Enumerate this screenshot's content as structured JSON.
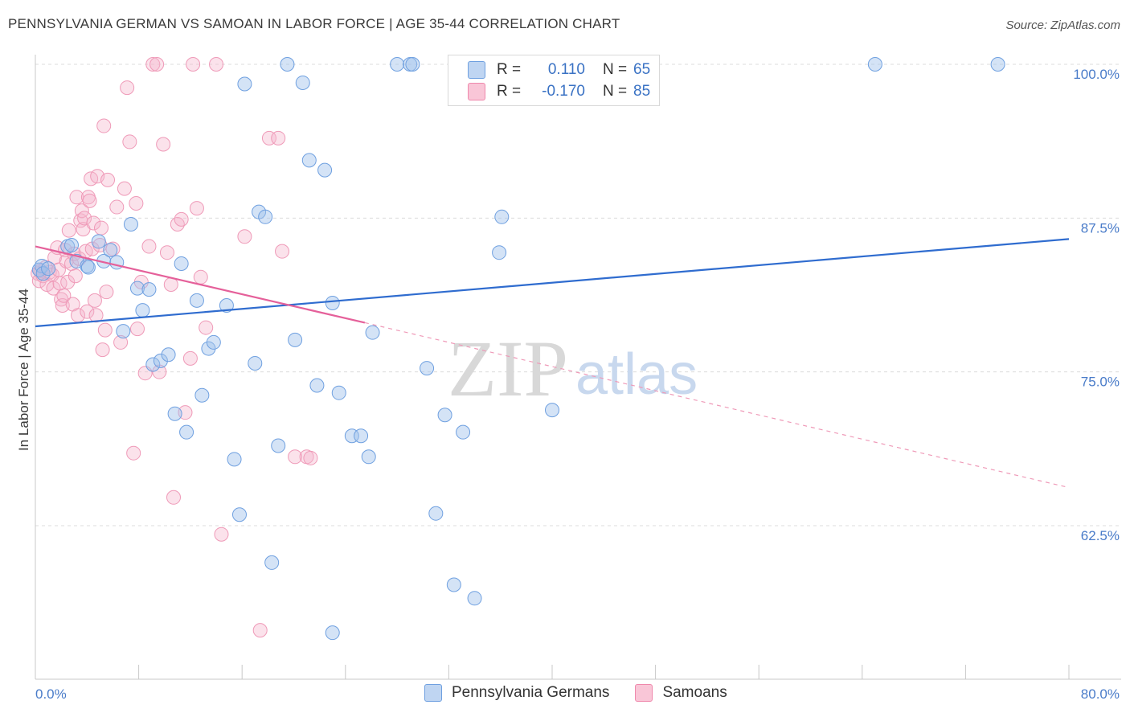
{
  "title": "PENNSYLVANIA GERMAN VS SAMOAN IN LABOR FORCE | AGE 35-44 CORRELATION CHART",
  "source": "Source: ZipAtlas.com",
  "watermark": {
    "zip": "ZIP",
    "atlas": "atlas"
  },
  "legend": {
    "rows": [
      {
        "r_label": "R =",
        "r_value": "0.110",
        "n_label": "N =",
        "n_value": "65",
        "color": "#6fa0e0"
      },
      {
        "r_label": "R =",
        "r_value": "-0.170",
        "n_label": "N =",
        "n_value": "85",
        "color": "#ef88ac"
      }
    ]
  },
  "bottom_legend": [
    {
      "label": "Pennsylvania Germans",
      "color": "#6fa0e0"
    },
    {
      "label": "Samoans",
      "color": "#ef88ac"
    }
  ],
  "chart_data": {
    "type": "scatter",
    "title": "PENNSYLVANIA GERMAN VS SAMOAN IN LABOR FORCE | AGE 35-44 CORRELATION CHART",
    "ylabel": "In Labor Force | Age 35-44",
    "xlabel": "",
    "xlim": [
      0,
      80
    ],
    "ylim": [
      49,
      100.5
    ],
    "x_tick_labels": [
      "0.0%",
      "80.0%"
    ],
    "y_ticks": [
      62.5,
      75.0,
      87.5,
      100.0
    ],
    "y_tick_labels": [
      "62.5%",
      "75.0%",
      "87.5%",
      "100.0%"
    ],
    "grid": true,
    "series": [
      {
        "name": "Pennsylvania Germans",
        "color": "#6fa0e0",
        "trend": {
          "x": [
            0,
            80
          ],
          "y": [
            78.7,
            85.8
          ],
          "style": "solid"
        },
        "points": [
          [
            0.3,
            83.3
          ],
          [
            0.5,
            83.6
          ],
          [
            0.6,
            83.0
          ],
          [
            1.0,
            83.4
          ],
          [
            2.5,
            85.2
          ],
          [
            2.8,
            85.3
          ],
          [
            3.2,
            84.0
          ],
          [
            4.0,
            83.6
          ],
          [
            4.1,
            83.5
          ],
          [
            4.9,
            85.6
          ],
          [
            5.3,
            84.0
          ],
          [
            5.8,
            84.9
          ],
          [
            6.3,
            83.9
          ],
          [
            6.8,
            78.3
          ],
          [
            7.4,
            87.0
          ],
          [
            7.9,
            81.8
          ],
          [
            8.3,
            80.0
          ],
          [
            8.8,
            81.7
          ],
          [
            9.1,
            75.6
          ],
          [
            9.7,
            75.9
          ],
          [
            10.3,
            76.4
          ],
          [
            10.8,
            71.6
          ],
          [
            11.3,
            83.8
          ],
          [
            11.7,
            70.1
          ],
          [
            12.5,
            80.8
          ],
          [
            12.9,
            73.1
          ],
          [
            13.4,
            76.9
          ],
          [
            13.8,
            77.4
          ],
          [
            14.8,
            80.4
          ],
          [
            15.4,
            67.9
          ],
          [
            15.8,
            63.4
          ],
          [
            16.2,
            98.4
          ],
          [
            17.0,
            75.7
          ],
          [
            17.3,
            88.0
          ],
          [
            17.8,
            87.6
          ],
          [
            18.3,
            59.5
          ],
          [
            18.8,
            69.0
          ],
          [
            19.5,
            100.0
          ],
          [
            20.1,
            77.6
          ],
          [
            20.7,
            98.5
          ],
          [
            21.2,
            92.2
          ],
          [
            21.8,
            73.9
          ],
          [
            22.4,
            91.4
          ],
          [
            23.0,
            80.6
          ],
          [
            23.5,
            73.3
          ],
          [
            24.5,
            69.8
          ],
          [
            25.2,
            69.8
          ],
          [
            25.8,
            68.1
          ],
          [
            26.1,
            78.2
          ],
          [
            28.0,
            100.0
          ],
          [
            29.0,
            100.0
          ],
          [
            29.2,
            100.0
          ],
          [
            30.3,
            75.3
          ],
          [
            31.0,
            63.5
          ],
          [
            31.7,
            71.5
          ],
          [
            32.4,
            57.7
          ],
          [
            33.1,
            70.1
          ],
          [
            34.0,
            56.6
          ],
          [
            35.9,
            84.7
          ],
          [
            36.1,
            87.6
          ],
          [
            40.0,
            71.9
          ],
          [
            47.0,
            100.0
          ],
          [
            65.0,
            100.0
          ],
          [
            74.5,
            100.0
          ],
          [
            23.0,
            53.8
          ]
        ]
      },
      {
        "name": "Samoans",
        "color": "#ef88ac",
        "trend": {
          "x": [
            0,
            25.5,
            80
          ],
          "y": [
            85.2,
            79.0,
            65.6
          ],
          "solid_until_x": 25.5
        },
        "points": [
          [
            0.2,
            83.0
          ],
          [
            0.3,
            82.4
          ],
          [
            0.4,
            83.2
          ],
          [
            0.6,
            82.8
          ],
          [
            0.8,
            83.5
          ],
          [
            0.9,
            82.1
          ],
          [
            1.1,
            83.1
          ],
          [
            1.3,
            82.9
          ],
          [
            1.4,
            81.8
          ],
          [
            1.5,
            84.3
          ],
          [
            1.7,
            85.1
          ],
          [
            1.8,
            83.3
          ],
          [
            1.9,
            82.2
          ],
          [
            2.0,
            80.9
          ],
          [
            2.1,
            80.4
          ],
          [
            2.2,
            81.2
          ],
          [
            2.3,
            84.9
          ],
          [
            2.4,
            84.0
          ],
          [
            2.5,
            82.3
          ],
          [
            2.6,
            86.5
          ],
          [
            2.8,
            83.8
          ],
          [
            2.9,
            80.5
          ],
          [
            3.0,
            84.6
          ],
          [
            3.1,
            82.8
          ],
          [
            3.2,
            89.2
          ],
          [
            3.3,
            79.6
          ],
          [
            3.4,
            84.2
          ],
          [
            3.5,
            87.3
          ],
          [
            3.6,
            88.1
          ],
          [
            3.7,
            86.6
          ],
          [
            3.8,
            87.5
          ],
          [
            3.9,
            84.8
          ],
          [
            4.0,
            79.9
          ],
          [
            4.1,
            89.2
          ],
          [
            4.2,
            88.9
          ],
          [
            4.3,
            90.7
          ],
          [
            4.4,
            85.0
          ],
          [
            4.5,
            87.1
          ],
          [
            4.6,
            80.8
          ],
          [
            4.7,
            79.6
          ],
          [
            4.8,
            90.9
          ],
          [
            5.0,
            85.3
          ],
          [
            5.1,
            86.7
          ],
          [
            5.2,
            76.8
          ],
          [
            5.3,
            95.0
          ],
          [
            5.4,
            78.4
          ],
          [
            5.5,
            81.5
          ],
          [
            5.6,
            90.6
          ],
          [
            6.0,
            85.0
          ],
          [
            6.3,
            88.4
          ],
          [
            6.6,
            77.4
          ],
          [
            6.9,
            89.9
          ],
          [
            7.1,
            98.1
          ],
          [
            7.3,
            93.7
          ],
          [
            7.6,
            68.4
          ],
          [
            7.8,
            88.7
          ],
          [
            7.9,
            78.5
          ],
          [
            8.2,
            82.3
          ],
          [
            8.5,
            74.9
          ],
          [
            8.8,
            85.2
          ],
          [
            9.1,
            100.0
          ],
          [
            9.4,
            100.0
          ],
          [
            9.6,
            75.0
          ],
          [
            9.9,
            93.5
          ],
          [
            10.2,
            84.7
          ],
          [
            10.5,
            82.1
          ],
          [
            10.7,
            64.8
          ],
          [
            11.0,
            87.0
          ],
          [
            11.3,
            87.4
          ],
          [
            11.6,
            71.7
          ],
          [
            12.0,
            76.1
          ],
          [
            12.2,
            100.0
          ],
          [
            12.5,
            88.3
          ],
          [
            12.8,
            82.7
          ],
          [
            13.2,
            78.6
          ],
          [
            14.0,
            100.0
          ],
          [
            14.4,
            61.8
          ],
          [
            16.2,
            86.0
          ],
          [
            17.4,
            54.0
          ],
          [
            18.1,
            94.0
          ],
          [
            18.8,
            94.0
          ],
          [
            19.1,
            84.8
          ],
          [
            20.1,
            68.1
          ],
          [
            21.0,
            68.1
          ],
          [
            21.3,
            68.0
          ]
        ]
      }
    ]
  }
}
